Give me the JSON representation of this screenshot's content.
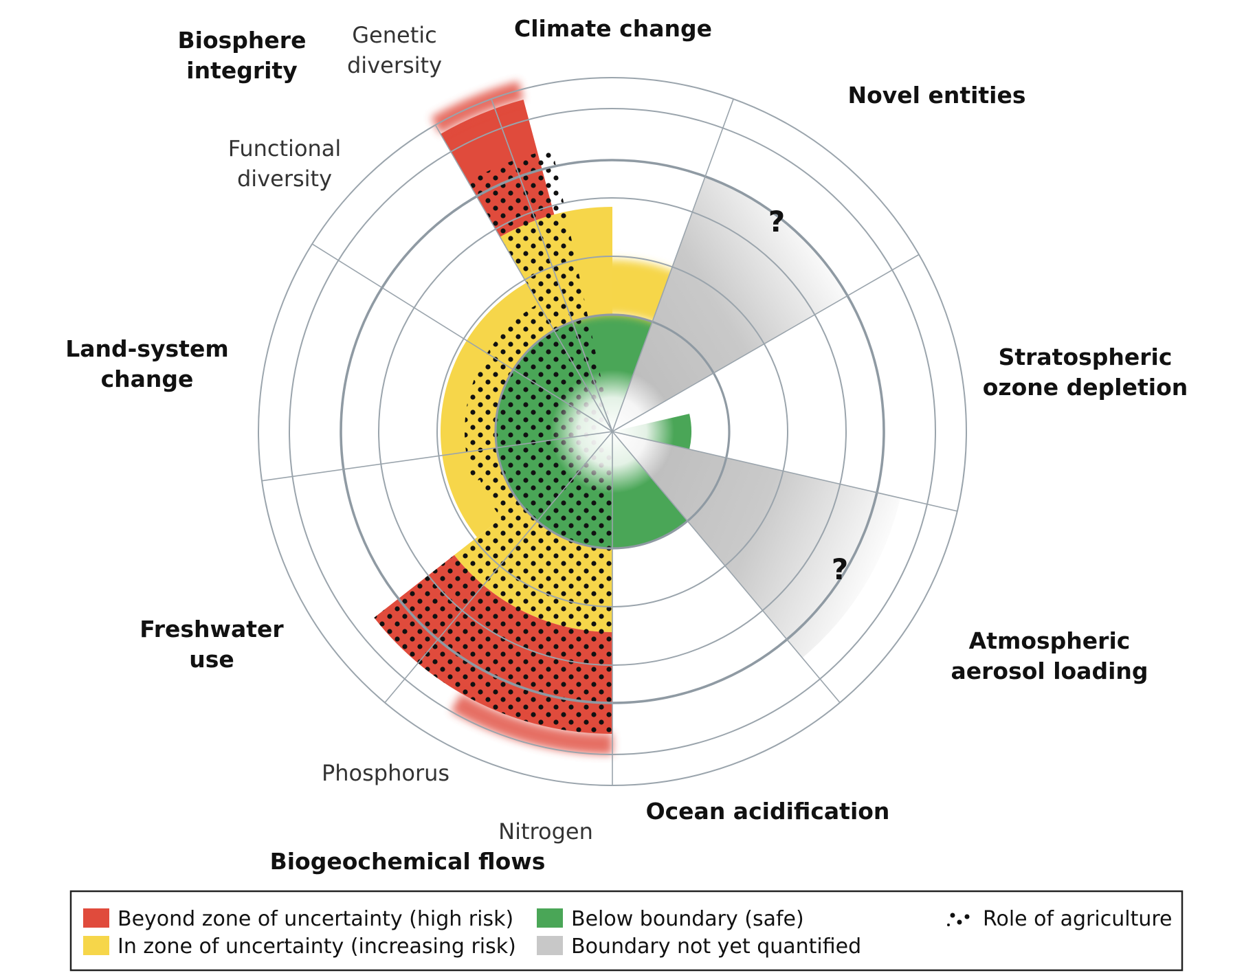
{
  "labels": {
    "climate_change": "Climate change",
    "novel_entities": "Novel entities",
    "stratospheric_ozone_depletion": [
      "Stratospheric",
      "ozone depletion"
    ],
    "atmospheric_aerosol_loading": [
      "Atmospheric",
      "aerosol loading"
    ],
    "ocean_acidification": "Ocean acidification",
    "biogeochemical_flows": "Biogeochemical flows",
    "nitrogen": "Nitrogen",
    "phosphorus": "Phosphorus",
    "freshwater_use": [
      "Freshwater",
      "use"
    ],
    "land_system_change": [
      "Land-system",
      "change"
    ],
    "biosphere_integrity": [
      "Biosphere",
      "integrity"
    ],
    "functional_diversity": [
      "Functional",
      "diversity"
    ],
    "genetic_diversity": [
      "Genetic",
      "diversity"
    ],
    "unknown_marker": "?"
  },
  "legend": {
    "high_risk": "Beyond zone of uncertainty (high risk)",
    "increasing_risk": "In zone of uncertainty (increasing risk)",
    "safe": "Below boundary (safe)",
    "not_quantified": "Boundary not yet quantified",
    "agriculture": "Role of agriculture"
  },
  "colors": {
    "high_risk": "#e04b3c",
    "increasing_risk": "#f6d64a",
    "safe": "#4aa657",
    "not_quantified": "#c8c8c8",
    "grid": "#9aa4ac",
    "boundary_ring": "#8f9aa3"
  },
  "boundaries": [
    {
      "name": "Climate change",
      "status": "increasing_risk",
      "agriculture": false
    },
    {
      "name": "Novel entities",
      "status": "not_quantified",
      "agriculture": false
    },
    {
      "name": "Stratospheric ozone depletion",
      "status": "safe",
      "agriculture": false
    },
    {
      "name": "Atmospheric aerosol loading",
      "status": "not_quantified",
      "agriculture": false
    },
    {
      "name": "Ocean acidification",
      "status": "safe",
      "agriculture": false
    },
    {
      "name": "Biogeochemical flows - Nitrogen",
      "status": "high_risk",
      "agriculture": true
    },
    {
      "name": "Biogeochemical flows - Phosphorus",
      "status": "high_risk",
      "agriculture": true
    },
    {
      "name": "Freshwater use",
      "status": "safe",
      "agriculture": true
    },
    {
      "name": "Land-system change",
      "status": "increasing_risk",
      "agriculture": true
    },
    {
      "name": "Biosphere integrity - Functional diversity",
      "status": "not_quantified",
      "agriculture": true
    },
    {
      "name": "Biosphere integrity - Genetic diversity",
      "status": "high_risk",
      "agriculture": true
    }
  ]
}
